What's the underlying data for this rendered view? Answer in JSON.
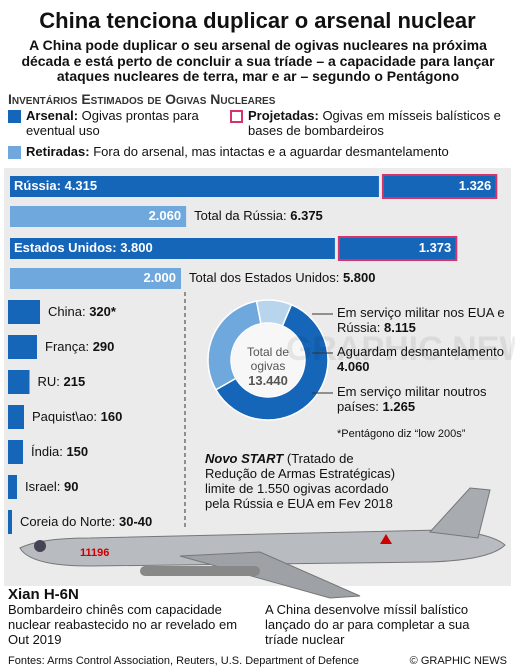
{
  "header": {
    "title": "China tenciona duplicar o arsenal nuclear",
    "subtitle": "A China pode duplicar o seu arsenal de ogivas nucleares na próxima década e está perto de concluir a sua tríade – a capacidade para lançar ataques nucleares de terra, mar e ar – segundo o Pentágono"
  },
  "section_title": "Inventários Estimados de Ogivas Nucleares",
  "legend": [
    {
      "term": "Arsenal:",
      "text": "Ogivas prontas para eventual uso",
      "color": "#1565b8"
    },
    {
      "term": "Projetadas:",
      "text": "Ogivas em mísseis balísticos e bases de bombardeiros",
      "color": "#d6336c"
    },
    {
      "term": "Retiradas:",
      "text": "Fora do arsenal, mas intactas e a aguardar desmantelamento",
      "color": "#6fa8dc"
    }
  ],
  "major": [
    {
      "country": "Rússia:",
      "arsenal": {
        "value": 4315,
        "label": "4.315"
      },
      "deployed": {
        "value": 1326,
        "label": "1.326"
      },
      "retired": {
        "value": 2060,
        "label": "2.060"
      },
      "total_label": "Total da Rússia:",
      "total": {
        "value": 6375,
        "label": "6.375"
      }
    },
    {
      "country": "Estados Unidos:",
      "arsenal": {
        "value": 3800,
        "label": "3.800"
      },
      "deployed": {
        "value": 1373,
        "label": "1.373"
      },
      "retired": {
        "value": 2000,
        "label": "2.000"
      },
      "total_label": "Total dos Estados Unidos:",
      "total": {
        "value": 5800,
        "label": "5.800"
      }
    }
  ],
  "minor": [
    {
      "country": "China:",
      "value": 320,
      "label": "320*"
    },
    {
      "country": "França:",
      "value": 290,
      "label": "290"
    },
    {
      "country": "RU:",
      "value": 215,
      "label": "215"
    },
    {
      "country": "Paquist\\ao:",
      "value": 160,
      "label": "160"
    },
    {
      "country": "Índia:",
      "value": 150,
      "label": "150"
    },
    {
      "country": "Israel:",
      "value": 90,
      "label": "90"
    },
    {
      "country": "Coreia do Norte:",
      "value": 40,
      "label": "30-40"
    }
  ],
  "donut": {
    "center_label": "Total de ogivas",
    "total": {
      "value": 13440,
      "label": "13.440"
    },
    "segments": [
      {
        "text": "Em serviço militar nos EUA e Rússia:",
        "value": 8115,
        "label": "8.115",
        "color": "#1565b8"
      },
      {
        "text": "Aguardam desmantelamento",
        "value": 4060,
        "label": "4.060",
        "color": "#6fa8dc"
      },
      {
        "text": "Em serviço militar noutros países:",
        "value": 1265,
        "label": "1.265",
        "color": "#b9d5ee"
      }
    ],
    "note": "*Pentágono diz “low 200s”"
  },
  "new_start": {
    "title": "Novo START",
    "text": "(Tratado de Redução de Armas Estratégicas) limite de 1.550 ogivas acordado pela Rússia e EUA em Fev 2018"
  },
  "aircraft": {
    "name": "Xian H-6N",
    "serial": "11196",
    "caption": "Bombardeiro chinês com capacidade nuclear reabastecido no ar revelado em Out 2019"
  },
  "missile_caption": "A China desenvolve míssil balístico lançado do ar para completar a sua tríade nuclear",
  "watermark": "GRAPHIC NEWS",
  "footer": {
    "sources": "Fontes: Arms Control Association, Reuters, U.S. Department of Defence",
    "credit": "© GRAPHIC NEWS"
  }
}
